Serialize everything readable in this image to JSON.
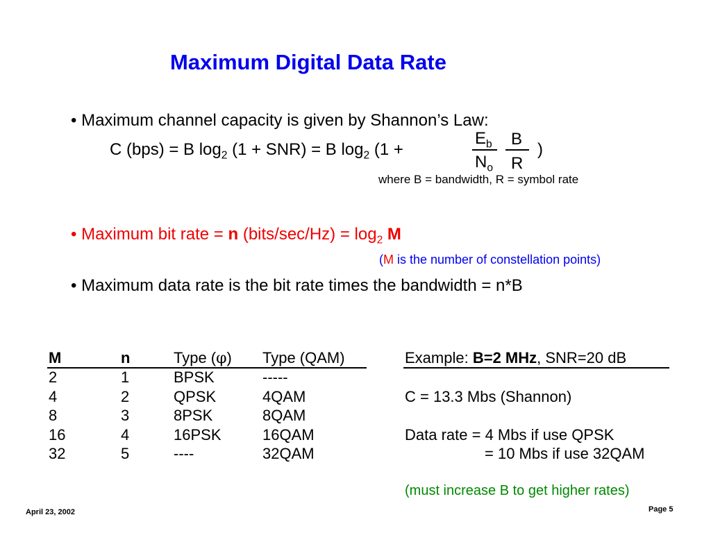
{
  "title": "Maximum Digital Data Rate",
  "bullets": {
    "b1": "Maximum channel capacity is given by Shannon’s Law:",
    "formula": {
      "lhs": "C (bps) = B log",
      "sub2a": "2",
      "mid": " (1 + SNR)  = B log",
      "sub2b": "2",
      "tail": " (1 +",
      "Eb_E": "E",
      "Eb_b": "b",
      "No_N": "N",
      "No_o": "o",
      "B": "B",
      "R": "R",
      "close": ")"
    },
    "where": "where B = bandwidth, R = symbol rate",
    "b2": {
      "pre": "Maximum bit rate =  ",
      "n": "n",
      "mid": " (bits/sec/Hz) =  log",
      "sub": "2",
      "M": " M"
    },
    "note": {
      "open": "(",
      "M": "M",
      "rest": " is the number of constellation points)"
    },
    "b3": "Maximum data rate is the bit rate times the bandwidth = n*B"
  },
  "table": {
    "headers": [
      "M",
      "n",
      "Type (",
      "φ",
      ")",
      "Type (QAM)"
    ],
    "rows": [
      [
        "2",
        "1",
        "BPSK",
        "-----"
      ],
      [
        "4",
        "2",
        "QPSK",
        "4QAM"
      ],
      [
        "8",
        "3",
        "8PSK",
        "8QAM"
      ],
      [
        "16",
        "4",
        "16PSK",
        "16QAM"
      ],
      [
        "32",
        "5",
        "----",
        "32QAM"
      ]
    ]
  },
  "example": {
    "label": "Example: ",
    "bw": "B=2 MHz",
    "snr": ", SNR=20 dB",
    "c": "C = 13.3 Mbs  (Shannon)",
    "rate1": "Data rate = 4 Mbs if use QPSK",
    "rate2": "= 10 Mbs if use 32QAM",
    "note": "(must increase B to get higher rates)"
  },
  "footer": {
    "date": "April 23, 2002",
    "page": "Page 5"
  },
  "colors": {
    "title": "#0000ee",
    "red": "#ee0000",
    "green": "#008800"
  }
}
